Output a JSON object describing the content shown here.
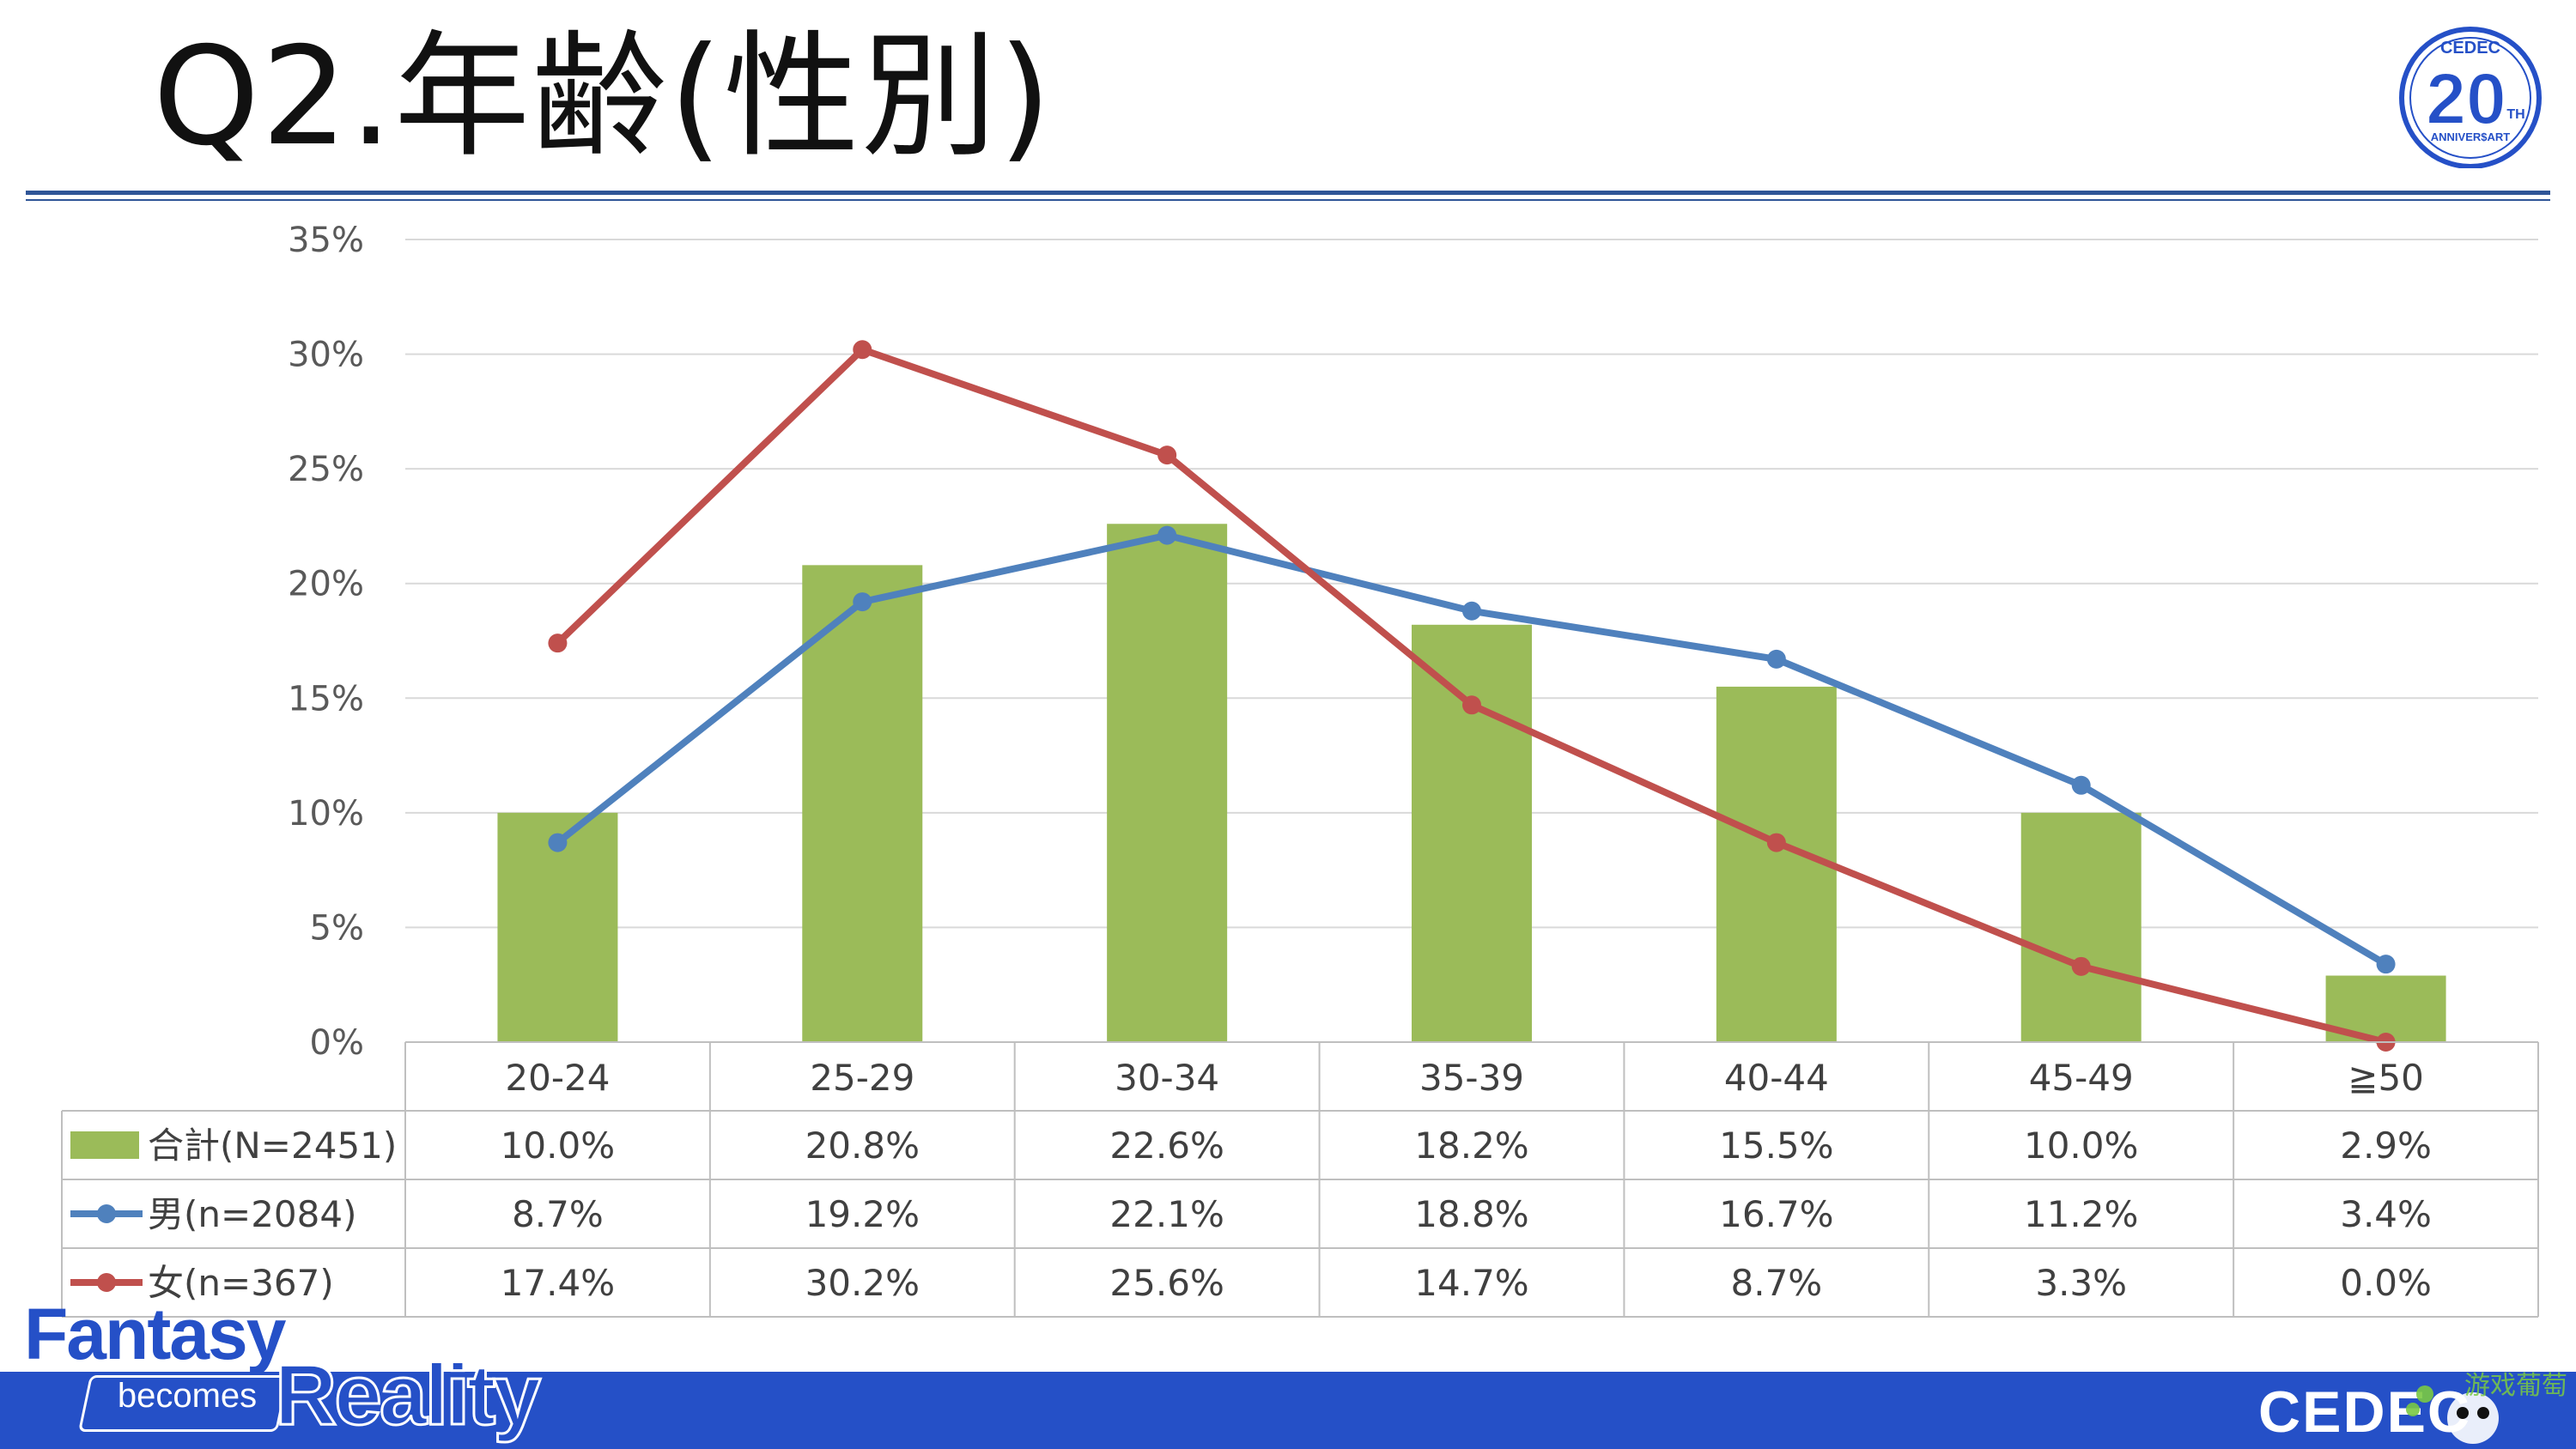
{
  "slide": {
    "title": "Q2.年齢(性別)",
    "logo_text": "CEDEC",
    "anniversary_number": "20",
    "anniversary_suffix": "TH",
    "anniversary_text": "ANNIVER$ART",
    "tagline_fantasy": "Fantasy",
    "tagline_becomes": "becomes",
    "tagline_reality": "Reality",
    "footer_brand": "CEDEC",
    "watermark_text": "游戏葡萄"
  },
  "colors": {
    "bar": "#9bbb59",
    "male": "#4f81bd",
    "female": "#c0504d",
    "grid": "#d9d9d9",
    "brand_blue": "#2550c7",
    "rule_blue": "#2f5597"
  },
  "chart_data": {
    "type": "bar",
    "categories": [
      "20-24",
      "25-29",
      "30-34",
      "35-39",
      "40-44",
      "45-49",
      "≧50"
    ],
    "ylim": [
      0,
      35
    ],
    "yticks": [
      "0%",
      "5%",
      "10%",
      "15%",
      "20%",
      "25%",
      "30%",
      "35%"
    ],
    "grid": true,
    "legend": "data-table",
    "series": [
      {
        "name": "合計(N=2451)",
        "kind": "bar",
        "values": [
          10.0,
          20.8,
          22.6,
          18.2,
          15.5,
          10.0,
          2.9
        ],
        "labels": [
          "10.0%",
          "20.8%",
          "22.6%",
          "18.2%",
          "15.5%",
          "10.0%",
          "2.9%"
        ]
      },
      {
        "name": "男(n=2084)",
        "kind": "line",
        "values": [
          8.7,
          19.2,
          22.1,
          18.8,
          16.7,
          11.2,
          3.4
        ],
        "labels": [
          "8.7%",
          "19.2%",
          "22.1%",
          "18.8%",
          "16.7%",
          "11.2%",
          "3.4%"
        ]
      },
      {
        "name": "女(n=367)",
        "kind": "line",
        "values": [
          17.4,
          30.2,
          25.6,
          14.7,
          8.7,
          3.3,
          0.0
        ],
        "labels": [
          "17.4%",
          "30.2%",
          "25.6%",
          "14.7%",
          "8.7%",
          "3.3%",
          "0.0%"
        ]
      }
    ]
  }
}
